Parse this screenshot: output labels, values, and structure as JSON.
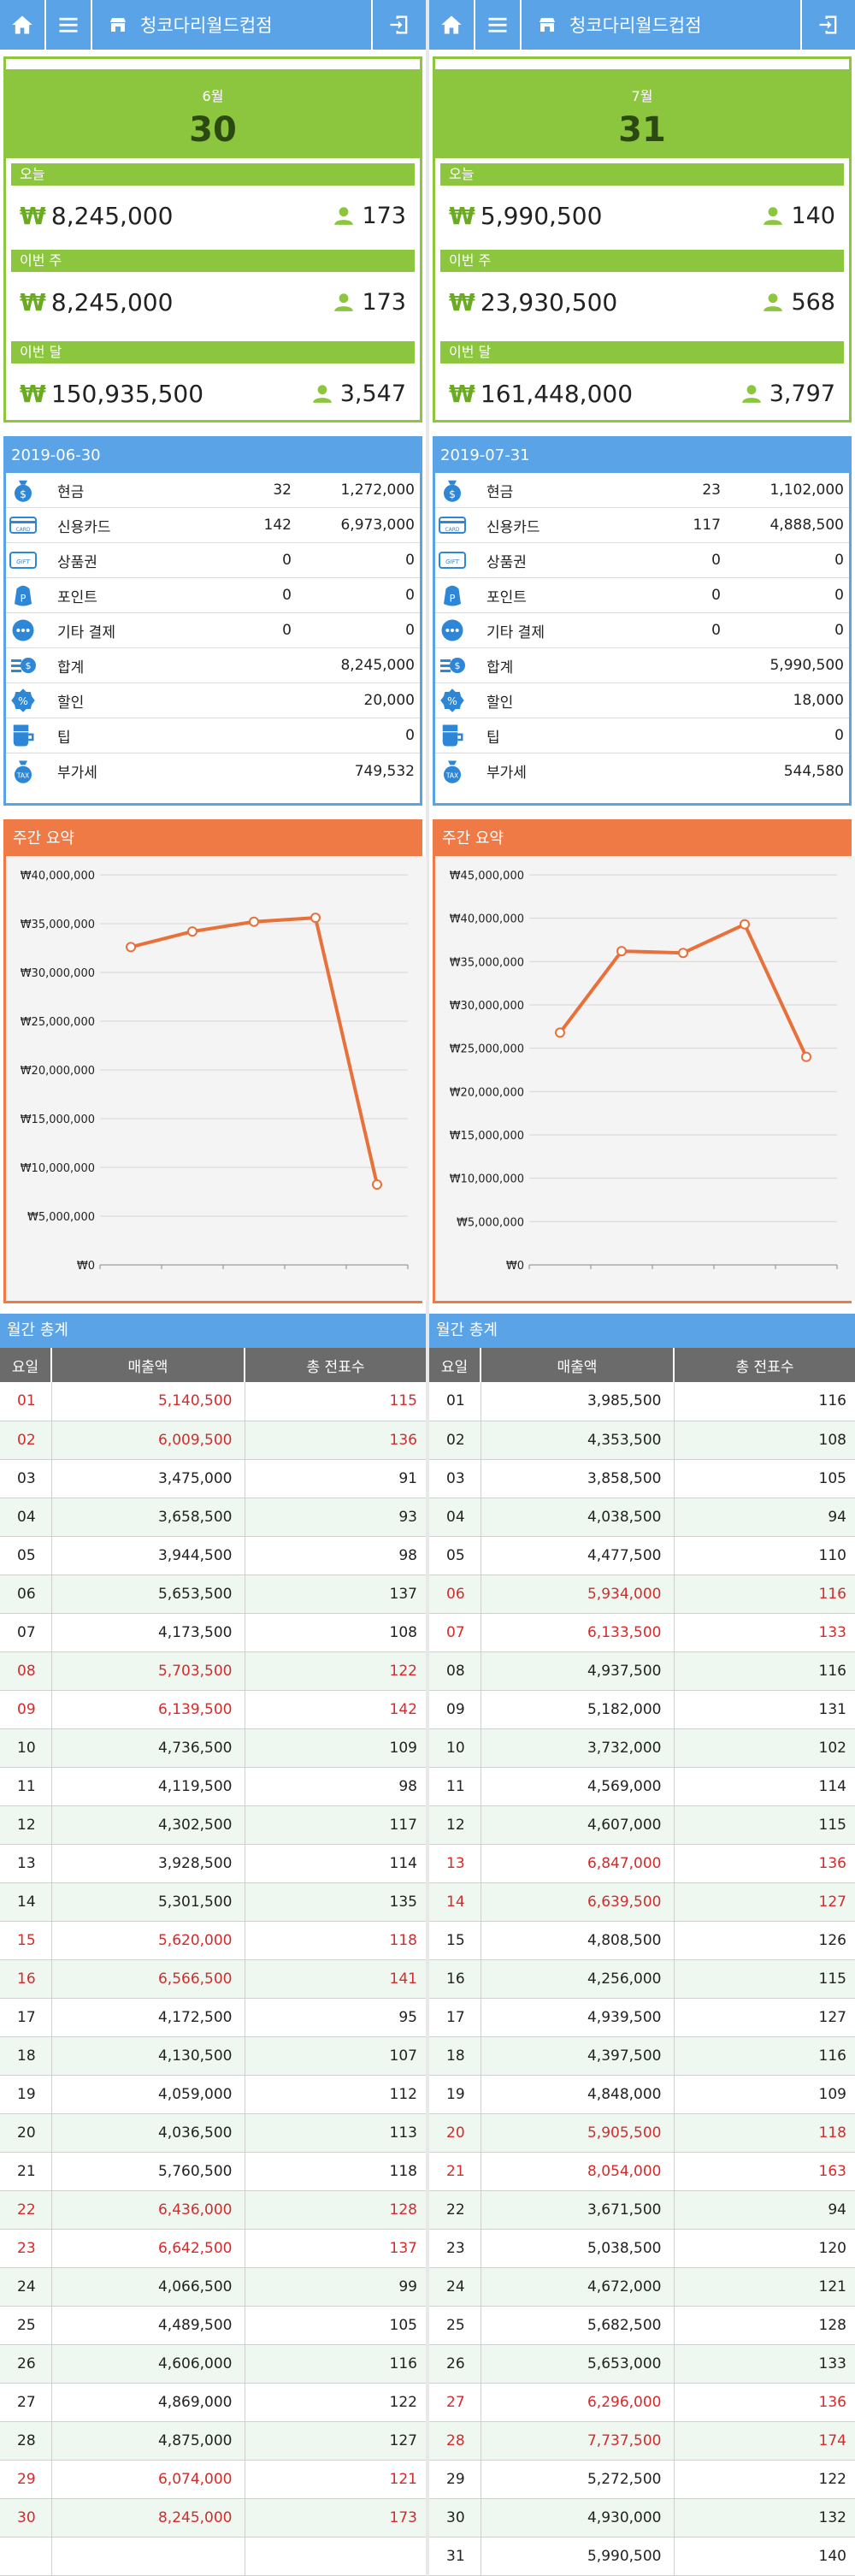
{
  "colors": {
    "blue": "#5aa3e6",
    "green": "#8cc63f",
    "orange": "#ef7a45",
    "red": "#d42b2b"
  },
  "panels": [
    {
      "topbar": {
        "title": "청코다리월드컵점",
        "icons": [
          "home-icon",
          "menu-icon",
          "store-icon",
          "logout-icon"
        ]
      },
      "summary": {
        "month": "6월",
        "day": "30",
        "blocks": [
          {
            "label": "오늘",
            "won": "₩",
            "amount": "8,245,000",
            "customers": "173"
          },
          {
            "label": "이번 주",
            "won": "₩",
            "amount": "8,245,000",
            "customers": "173"
          },
          {
            "label": "이번 달",
            "won": "₩",
            "amount": "150,935,500",
            "customers": "3,547"
          }
        ]
      },
      "payment": {
        "date": "2019-06-30",
        "rows": [
          {
            "icon": "cash-bag-icon",
            "name": "현금",
            "count": "32",
            "amount": "1,272,000"
          },
          {
            "icon": "card-icon",
            "name": "신용카드",
            "count": "142",
            "amount": "6,973,000"
          },
          {
            "icon": "gift-icon",
            "name": "상품권",
            "count": "0",
            "amount": "0"
          },
          {
            "icon": "point-icon",
            "name": "포인트",
            "count": "0",
            "amount": "0"
          },
          {
            "icon": "more-icon",
            "name": "기타 결제",
            "count": "0",
            "amount": "0"
          },
          {
            "icon": "sum-icon",
            "name": "합계",
            "count": "",
            "amount": "8,245,000"
          },
          {
            "icon": "discount-icon",
            "name": "할인",
            "count": "",
            "amount": "20,000"
          },
          {
            "icon": "tip-cup-icon",
            "name": "팁",
            "count": "",
            "amount": "0"
          },
          {
            "icon": "tax-icon",
            "name": "부가세",
            "count": "",
            "amount": "749,532"
          }
        ]
      },
      "weekly": {
        "title": "주간 요약"
      },
      "monthly": {
        "title": "월간 총계",
        "headers": [
          "요일",
          "매출액",
          "총 전표수"
        ],
        "rows": [
          [
            "01",
            "5,140,500",
            "115",
            1
          ],
          [
            "02",
            "6,009,500",
            "136",
            1
          ],
          [
            "03",
            "3,475,000",
            "91",
            0
          ],
          [
            "04",
            "3,658,500",
            "93",
            0
          ],
          [
            "05",
            "3,944,500",
            "98",
            0
          ],
          [
            "06",
            "5,653,500",
            "137",
            0
          ],
          [
            "07",
            "4,173,500",
            "108",
            0
          ],
          [
            "08",
            "5,703,500",
            "122",
            1
          ],
          [
            "09",
            "6,139,500",
            "142",
            1
          ],
          [
            "10",
            "4,736,500",
            "109",
            0
          ],
          [
            "11",
            "4,119,500",
            "98",
            0
          ],
          [
            "12",
            "4,302,500",
            "117",
            0
          ],
          [
            "13",
            "3,928,500",
            "114",
            0
          ],
          [
            "14",
            "5,301,500",
            "135",
            0
          ],
          [
            "15",
            "5,620,000",
            "118",
            1
          ],
          [
            "16",
            "6,566,500",
            "141",
            1
          ],
          [
            "17",
            "4,172,500",
            "95",
            0
          ],
          [
            "18",
            "4,130,500",
            "107",
            0
          ],
          [
            "19",
            "4,059,000",
            "112",
            0
          ],
          [
            "20",
            "4,036,500",
            "113",
            0
          ],
          [
            "21",
            "5,760,500",
            "118",
            0
          ],
          [
            "22",
            "6,436,000",
            "128",
            1
          ],
          [
            "23",
            "6,642,500",
            "137",
            1
          ],
          [
            "24",
            "4,066,500",
            "99",
            0
          ],
          [
            "25",
            "4,489,500",
            "105",
            0
          ],
          [
            "26",
            "4,606,000",
            "116",
            0
          ],
          [
            "27",
            "4,869,000",
            "122",
            0
          ],
          [
            "28",
            "4,875,000",
            "127",
            0
          ],
          [
            "29",
            "6,074,000",
            "121",
            1
          ],
          [
            "30",
            "8,245,000",
            "173",
            1
          ],
          [
            "",
            "",
            "",
            0
          ]
        ]
      }
    },
    {
      "topbar": {
        "title": "청코다리월드컵점",
        "icons": [
          "home-icon",
          "menu-icon",
          "store-icon",
          "logout-icon"
        ]
      },
      "summary": {
        "month": "7월",
        "day": "31",
        "blocks": [
          {
            "label": "오늘",
            "won": "₩",
            "amount": "5,990,500",
            "customers": "140"
          },
          {
            "label": "이번 주",
            "won": "₩",
            "amount": "23,930,500",
            "customers": "568"
          },
          {
            "label": "이번 달",
            "won": "₩",
            "amount": "161,448,000",
            "customers": "3,797"
          }
        ]
      },
      "payment": {
        "date": "2019-07-31",
        "rows": [
          {
            "icon": "cash-bag-icon",
            "name": "현금",
            "count": "23",
            "amount": "1,102,000"
          },
          {
            "icon": "card-icon",
            "name": "신용카드",
            "count": "117",
            "amount": "4,888,500"
          },
          {
            "icon": "gift-icon",
            "name": "상품권",
            "count": "0",
            "amount": "0"
          },
          {
            "icon": "point-icon",
            "name": "포인트",
            "count": "0",
            "amount": "0"
          },
          {
            "icon": "more-icon",
            "name": "기타 결제",
            "count": "0",
            "amount": "0"
          },
          {
            "icon": "sum-icon",
            "name": "합계",
            "count": "",
            "amount": "5,990,500"
          },
          {
            "icon": "discount-icon",
            "name": "할인",
            "count": "",
            "amount": "18,000"
          },
          {
            "icon": "tip-cup-icon",
            "name": "팁",
            "count": "",
            "amount": "0"
          },
          {
            "icon": "tax-icon",
            "name": "부가세",
            "count": "",
            "amount": "544,580"
          }
        ]
      },
      "weekly": {
        "title": "주간 요약"
      },
      "monthly": {
        "title": "월간 총계",
        "headers": [
          "요일",
          "매출액",
          "총 전표수"
        ],
        "rows": [
          [
            "01",
            "3,985,500",
            "116",
            0
          ],
          [
            "02",
            "4,353,500",
            "108",
            0
          ],
          [
            "03",
            "3,858,500",
            "105",
            0
          ],
          [
            "04",
            "4,038,500",
            "94",
            0
          ],
          [
            "05",
            "4,477,500",
            "110",
            0
          ],
          [
            "06",
            "5,934,000",
            "116",
            1
          ],
          [
            "07",
            "6,133,500",
            "133",
            1
          ],
          [
            "08",
            "4,937,500",
            "116",
            0
          ],
          [
            "09",
            "5,182,000",
            "131",
            0
          ],
          [
            "10",
            "3,732,000",
            "102",
            0
          ],
          [
            "11",
            "4,569,000",
            "114",
            0
          ],
          [
            "12",
            "4,607,000",
            "115",
            0
          ],
          [
            "13",
            "6,847,000",
            "136",
            1
          ],
          [
            "14",
            "6,639,500",
            "127",
            1
          ],
          [
            "15",
            "4,808,500",
            "126",
            0
          ],
          [
            "16",
            "4,256,000",
            "115",
            0
          ],
          [
            "17",
            "4,939,500",
            "127",
            0
          ],
          [
            "18",
            "4,397,500",
            "116",
            0
          ],
          [
            "19",
            "4,848,000",
            "109",
            0
          ],
          [
            "20",
            "5,905,500",
            "118",
            1
          ],
          [
            "21",
            "8,054,000",
            "163",
            1
          ],
          [
            "22",
            "3,671,500",
            "94",
            0
          ],
          [
            "23",
            "5,038,500",
            "120",
            0
          ],
          [
            "24",
            "4,672,000",
            "121",
            0
          ],
          [
            "25",
            "5,682,500",
            "128",
            0
          ],
          [
            "26",
            "5,653,000",
            "133",
            0
          ],
          [
            "27",
            "6,296,000",
            "136",
            1
          ],
          [
            "28",
            "7,737,500",
            "174",
            1
          ],
          [
            "29",
            "5,272,500",
            "122",
            0
          ],
          [
            "30",
            "4,930,000",
            "132",
            0
          ],
          [
            "31",
            "5,990,500",
            "140",
            0
          ]
        ]
      }
    }
  ],
  "chart_data": [
    {
      "type": "line",
      "title": "주간 요약",
      "x": [
        1,
        2,
        3,
        4,
        5
      ],
      "series": [
        {
          "values": [
            32600000,
            34200000,
            35200000,
            35600000,
            8245000
          ]
        }
      ],
      "ylim": [
        0,
        40000000
      ],
      "yticks": [
        "₩0",
        "₩5,000,000",
        "₩10,000,000",
        "₩15,000,000",
        "₩20,000,000",
        "₩25,000,000",
        "₩30,000,000",
        "₩35,000,000",
        "₩40,000,000"
      ],
      "grid": true
    },
    {
      "type": "line",
      "title": "주간 요약",
      "x": [
        1,
        2,
        3,
        4,
        5
      ],
      "series": [
        {
          "values": [
            26800000,
            36200000,
            36000000,
            39300000,
            24000000
          ]
        }
      ],
      "ylim": [
        0,
        45000000
      ],
      "yticks": [
        "₩0",
        "₩5,000,000",
        "₩10,000,000",
        "₩15,000,000",
        "₩20,000,000",
        "₩25,000,000",
        "₩30,000,000",
        "₩35,000,000",
        "₩40,000,000",
        "₩45,000,000"
      ],
      "grid": true
    }
  ]
}
